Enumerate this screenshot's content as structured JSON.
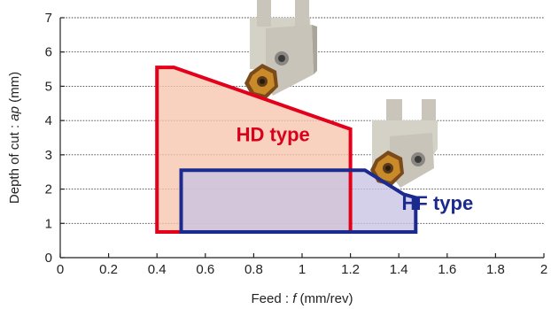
{
  "chart_data": {
    "type": "area",
    "xlabel": {
      "prefix": "Feed : ",
      "var": "f",
      "suffix": " (mm/rev)"
    },
    "ylabel": {
      "prefix": "Depth of cut : ",
      "var": "ap",
      "suffix": " (mm)"
    },
    "xlim": [
      0,
      2
    ],
    "ylim": [
      0,
      7
    ],
    "x_ticks": [
      0,
      0.2,
      0.4,
      0.6,
      0.8,
      1,
      1.2,
      1.4,
      1.6,
      1.8,
      2
    ],
    "x_tick_labels": [
      "0",
      "0.2",
      "0.4",
      "0.6",
      "0.8",
      "1",
      "1.2",
      "1.4",
      "1.6",
      "1.8",
      "2"
    ],
    "y_ticks": [
      0,
      1,
      2,
      3,
      4,
      5,
      6,
      7
    ],
    "y_tick_labels": [
      "0",
      "1",
      "2",
      "3",
      "4",
      "5",
      "6",
      "7"
    ],
    "grid": "horizontal-dotted",
    "series": [
      {
        "name": "HD type",
        "color": "#e3001b",
        "fill": "#f6c4ad",
        "polygon": [
          [
            0.4,
            0.75
          ],
          [
            0.4,
            5.55
          ],
          [
            0.47,
            5.55
          ],
          [
            1.2,
            3.75
          ],
          [
            1.2,
            0.75
          ]
        ]
      },
      {
        "name": "HF type",
        "color": "#1b2a8f",
        "fill": "#c8c3e3",
        "polygon": [
          [
            0.5,
            0.75
          ],
          [
            0.5,
            2.55
          ],
          [
            1.26,
            2.55
          ],
          [
            1.42,
            1.85
          ],
          [
            1.47,
            1.75
          ],
          [
            1.47,
            0.75
          ]
        ]
      }
    ],
    "annotations": [
      {
        "text": "HD type",
        "x": 0.88,
        "y": 3.4,
        "color": "#d8001b"
      },
      {
        "text": "HF type",
        "x": 1.56,
        "y": 1.4,
        "color": "#1b2a8f"
      }
    ],
    "images": [
      "tool-holder-photo-upper",
      "tool-holder-photo-lower"
    ]
  }
}
